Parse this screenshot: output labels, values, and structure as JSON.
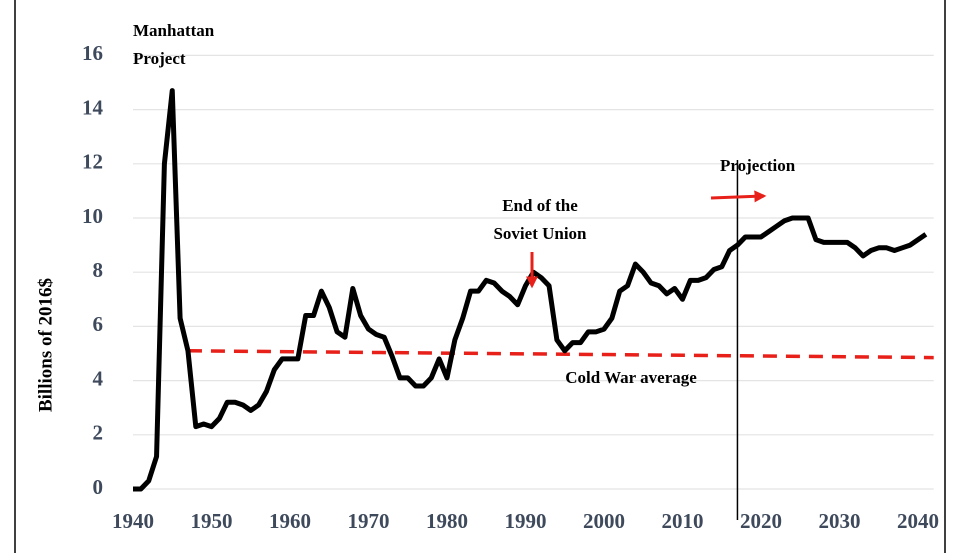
{
  "chart_data": {
    "type": "line",
    "y_label": "Billions of 2016$",
    "x": [
      1940,
      1941,
      1942,
      1943,
      1944,
      1945,
      1946,
      1947,
      1948,
      1949,
      1950,
      1951,
      1952,
      1953,
      1954,
      1955,
      1956,
      1957,
      1958,
      1959,
      1960,
      1961,
      1962,
      1963,
      1964,
      1965,
      1966,
      1967,
      1968,
      1969,
      1970,
      1971,
      1972,
      1973,
      1974,
      1975,
      1976,
      1977,
      1978,
      1979,
      1980,
      1981,
      1982,
      1983,
      1984,
      1985,
      1986,
      1987,
      1988,
      1989,
      1990,
      1991,
      1992,
      1993,
      1994,
      1995,
      1996,
      1997,
      1998,
      1999,
      2000,
      2001,
      2002,
      2003,
      2004,
      2005,
      2006,
      2007,
      2008,
      2009,
      2010,
      2011,
      2012,
      2013,
      2014,
      2015,
      2016,
      2017,
      2018,
      2019,
      2020,
      2021,
      2022,
      2023,
      2024,
      2025,
      2026,
      2027,
      2028,
      2029,
      2030,
      2031,
      2032,
      2033,
      2034,
      2035,
      2036,
      2037,
      2038,
      2039,
      2040,
      2041
    ],
    "series": [
      {
        "color": "#000000",
        "values": [
          0,
          0,
          0.3,
          1.2,
          12,
          14.7,
          6.3,
          5.1,
          2.3,
          2.4,
          2.3,
          2.6,
          3.2,
          3.2,
          3.1,
          2.9,
          3.1,
          3.6,
          4.4,
          4.8,
          4.8,
          4.8,
          6.4,
          6.4,
          7.3,
          6.7,
          5.8,
          5.6,
          7.4,
          6.4,
          5.9,
          5.7,
          5.6,
          4.9,
          4.1,
          4.1,
          3.8,
          3.8,
          4.1,
          4.8,
          4.1,
          5.5,
          6.3,
          7.3,
          7.3,
          7.7,
          7.6,
          7.3,
          7.1,
          6.8,
          7.5,
          8.0,
          7.8,
          7.5,
          5.5,
          5.1,
          5.4,
          5.4,
          5.8,
          5.8,
          5.9,
          6.3,
          7.3,
          7.5,
          8.3,
          8.0,
          7.6,
          7.5,
          7.2,
          7.4,
          7.0,
          7.7,
          7.7,
          7.8,
          8.1,
          8.2,
          8.8,
          9.0,
          9.3,
          9.3,
          9.3,
          9.5,
          9.7,
          9.9,
          10.0,
          10.0,
          10.0,
          9.2,
          9.1,
          9.1,
          9.1,
          9.1,
          8.9,
          8.6,
          8.8,
          8.9,
          8.9,
          8.8,
          8.9,
          9.0,
          9.2,
          9.4
        ]
      }
    ],
    "reference_line": {
      "label": "Cold War average",
      "color": "#e8201a",
      "x": [
        1947,
        2042
      ],
      "values": [
        5.1,
        4.85
      ]
    },
    "annotations": [
      {
        "lines": [
          "Manhattan",
          "Project"
        ]
      },
      {
        "lines": [
          "End of the",
          "Soviet Union"
        ]
      },
      {
        "lines": [
          "Projection"
        ],
        "x": 2017
      }
    ],
    "xlim": [
      1940,
      2042
    ],
    "xticks": [
      1940,
      1950,
      1960,
      1970,
      1980,
      1990,
      2000,
      2010,
      2020,
      2030,
      2040
    ],
    "ylim": [
      0,
      16
    ],
    "yticks": [
      0,
      2,
      4,
      6,
      8,
      10,
      12,
      14,
      16
    ],
    "grid": true
  }
}
